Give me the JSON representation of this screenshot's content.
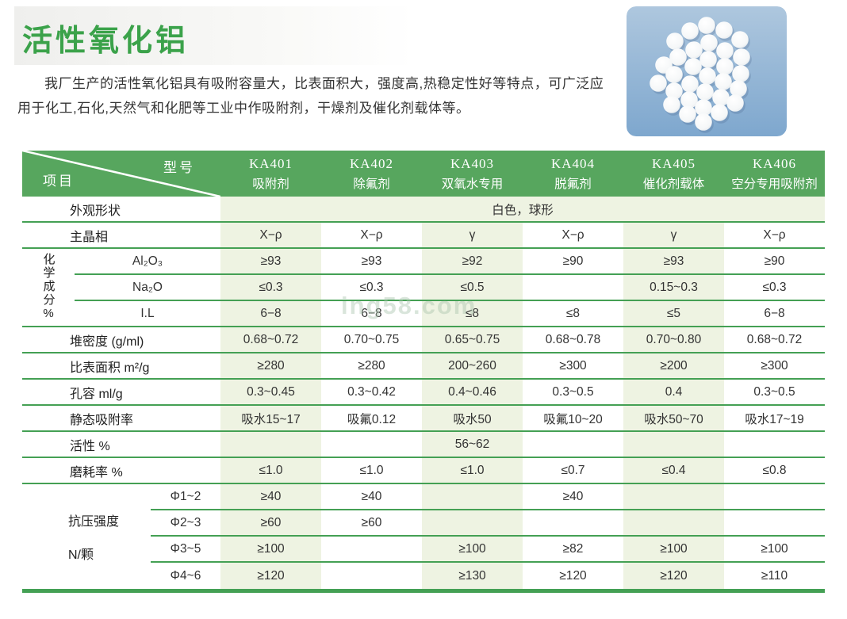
{
  "title": "活性氧化铝",
  "intro": "我厂生产的活性氧化铝具有吸附容量大，比表面积大，强度高,热稳定性好等特点，可广泛应用于化工,石化,天然气和化肥等工业中作吸附剂，干燥剂及催化剂载体等。",
  "watermark": "ing58.com",
  "colors": {
    "title_green": "#3ba24a",
    "header_green": "#57a65e",
    "line_green": "#44a054",
    "band_green": "#eef3e2",
    "photo_blue": "#8fb2d5",
    "text_dark": "#333333"
  },
  "table": {
    "corner_top": "型号",
    "corner_bottom": "项目",
    "chem_group_label": "化学成分%",
    "strength_group_label": [
      "抗压强度",
      "N/颗"
    ],
    "header": [
      {
        "model": "KA401",
        "use": "吸附剂"
      },
      {
        "model": "KA402",
        "use": "除氟剂"
      },
      {
        "model": "KA403",
        "use": "双氧水专用"
      },
      {
        "model": "KA404",
        "use": "脱氟剂"
      },
      {
        "model": "KA405",
        "use": "催化剂载体"
      },
      {
        "model": "KA406",
        "use": "空分专用吸附剂"
      }
    ],
    "rows": [
      {
        "kind": "appearance",
        "label": "外观形状",
        "value": "白色，球形"
      },
      {
        "kind": "plain",
        "label": "主晶相",
        "values": [
          "X−ρ",
          "X−ρ",
          "γ",
          "X−ρ",
          "γ",
          "X−ρ"
        ]
      },
      {
        "kind": "chem",
        "sub": "Al₂O₃",
        "values": [
          "≥93",
          "≥93",
          "≥92",
          "≥90",
          "≥93",
          "≥90"
        ]
      },
      {
        "kind": "chem",
        "sub": "Na₂O",
        "values": [
          "≤0.3",
          "≤0.3",
          "≤0.5",
          "",
          "0.15~0.3",
          "≤0.3"
        ]
      },
      {
        "kind": "chem",
        "sub": "I.L",
        "values": [
          "6−8",
          "6−8",
          "≤8",
          "≤8",
          "≤5",
          "6−8"
        ]
      },
      {
        "kind": "plain",
        "label": "堆密度 (g/ml)",
        "values": [
          "0.68~0.72",
          "0.70~0.75",
          "0.65~0.75",
          "0.68~0.78",
          "0.70~0.80",
          "0.68~0.72"
        ]
      },
      {
        "kind": "plain",
        "label": "比表面积 m²/g",
        "values": [
          "≥280",
          "≥280",
          "200~260",
          "≥300",
          "≥200",
          "≥300"
        ]
      },
      {
        "kind": "plain",
        "label": "孔容 ml/g",
        "values": [
          "0.3~0.45",
          "0.3~0.42",
          "0.4~0.46",
          "0.3~0.5",
          "0.4",
          "0.3~0.5"
        ]
      },
      {
        "kind": "plain",
        "label": "静态吸附率",
        "values": [
          "吸水15~17",
          "吸氟0.12",
          "吸水50",
          "吸氟10~20",
          "吸水50~70",
          "吸水17~19"
        ]
      },
      {
        "kind": "plain",
        "label": "活性 %",
        "values": [
          "",
          "",
          "56~62",
          "",
          "",
          ""
        ]
      },
      {
        "kind": "plain",
        "label": "磨耗率 %",
        "values": [
          "≤1.0",
          "≤1.0",
          "≤1.0",
          "≤0.7",
          "≤0.4",
          "≤0.8"
        ]
      },
      {
        "kind": "strength",
        "sub": "Φ1~2",
        "values": [
          "≥40",
          "≥40",
          "",
          "≥40",
          "",
          ""
        ]
      },
      {
        "kind": "strength",
        "sub": "Φ2~3",
        "values": [
          "≥60",
          "≥60",
          "",
          "",
          "",
          ""
        ]
      },
      {
        "kind": "strength",
        "sub": "Φ3~5",
        "values": [
          "≥100",
          "",
          "≥100",
          "≥82",
          "≥100",
          "≥100"
        ]
      },
      {
        "kind": "strength",
        "sub": "Φ4~6",
        "values": [
          "≥120",
          "",
          "≥130",
          "≥120",
          "≥120",
          "≥110"
        ]
      }
    ]
  }
}
